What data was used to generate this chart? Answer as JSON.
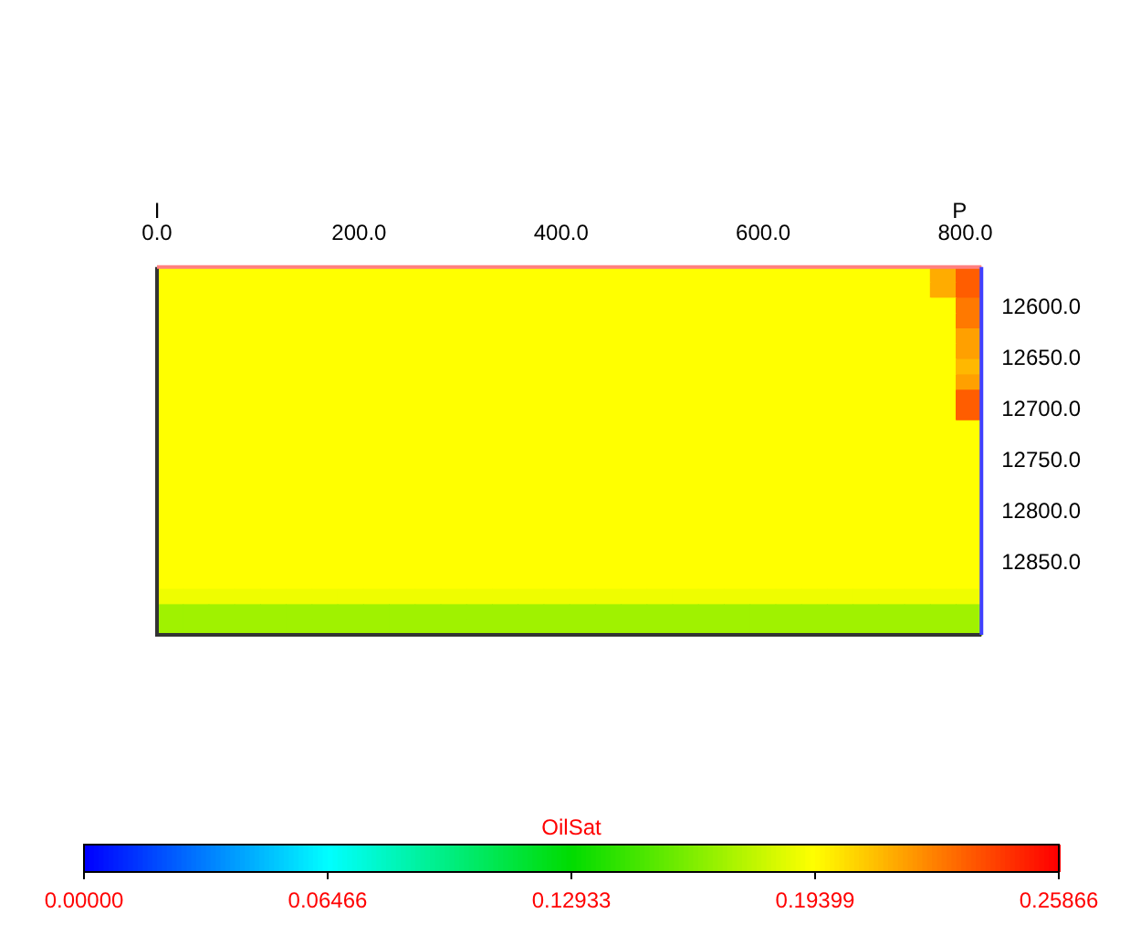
{
  "chart_data": {
    "type": "heatmap",
    "clabel": "OilSat",
    "x": [
      12.75,
      38.25,
      63.75,
      89.25,
      114.75,
      140.25,
      165.75,
      191.25,
      216.75,
      242.25,
      267.75,
      293.25,
      318.75,
      344.25,
      369.75,
      395.25,
      420.75,
      446.25,
      471.75,
      497.25,
      522.75,
      548.25,
      573.75,
      599.25,
      624.75,
      650.25,
      675.75,
      701.25,
      726.75,
      752.25,
      777.75,
      803.25
    ],
    "xlim": [
      0,
      816
    ],
    "xticks": [
      {
        "value": 0,
        "label": "0.0"
      },
      {
        "value": 200,
        "label": "200.0"
      },
      {
        "value": 400,
        "label": "400.0"
      },
      {
        "value": 600,
        "label": "600.0"
      },
      {
        "value": 800,
        "label": "800.0"
      }
    ],
    "ylim": [
      12920,
      12560
    ],
    "yticks": [
      {
        "value": 12600,
        "label": "12600.0"
      },
      {
        "value": 12650,
        "label": "12650.0"
      },
      {
        "value": 12700,
        "label": "12700.0"
      },
      {
        "value": 12750,
        "label": "12750.0"
      },
      {
        "value": 12800,
        "label": "12800.0"
      },
      {
        "value": 12850,
        "label": "12850.0"
      }
    ],
    "clim": [
      0,
      0.25866
    ],
    "cticks": [
      {
        "value": 0,
        "label": "0.00000"
      },
      {
        "value": 0.06466,
        "label": "0.06466"
      },
      {
        "value": 0.12933,
        "label": "0.12933"
      },
      {
        "value": 0.19399,
        "label": "0.19399"
      },
      {
        "value": 0.25866,
        "label": "0.25866"
      }
    ],
    "annotations": [
      "I",
      "P"
    ],
    "cells": [
      [
        0.194,
        0.194,
        0.194,
        0.194,
        0.194,
        0.194,
        0.194,
        0.194,
        0.194,
        0.194,
        0.194,
        0.194,
        0.194,
        0.194,
        0.194,
        0.194,
        0.194,
        0.194,
        0.194,
        0.194,
        0.194,
        0.194,
        0.194,
        0.194,
        0.194,
        0.194,
        0.194,
        0.194,
        0.194,
        0.194,
        0.215,
        0.235
      ],
      [
        0.194,
        0.194,
        0.194,
        0.194,
        0.194,
        0.194,
        0.194,
        0.194,
        0.194,
        0.194,
        0.194,
        0.194,
        0.194,
        0.194,
        0.194,
        0.194,
        0.194,
        0.194,
        0.194,
        0.194,
        0.194,
        0.194,
        0.194,
        0.194,
        0.194,
        0.194,
        0.194,
        0.194,
        0.194,
        0.194,
        0.215,
        0.235
      ],
      [
        0.194,
        0.194,
        0.194,
        0.194,
        0.194,
        0.194,
        0.194,
        0.194,
        0.194,
        0.194,
        0.194,
        0.194,
        0.194,
        0.194,
        0.194,
        0.194,
        0.194,
        0.194,
        0.194,
        0.194,
        0.194,
        0.194,
        0.194,
        0.194,
        0.194,
        0.194,
        0.194,
        0.194,
        0.194,
        0.194,
        0.194,
        0.228
      ],
      [
        0.194,
        0.194,
        0.194,
        0.194,
        0.194,
        0.194,
        0.194,
        0.194,
        0.194,
        0.194,
        0.194,
        0.194,
        0.194,
        0.194,
        0.194,
        0.194,
        0.194,
        0.194,
        0.194,
        0.194,
        0.194,
        0.194,
        0.194,
        0.194,
        0.194,
        0.194,
        0.194,
        0.194,
        0.194,
        0.194,
        0.194,
        0.228
      ],
      [
        0.194,
        0.194,
        0.194,
        0.194,
        0.194,
        0.194,
        0.194,
        0.194,
        0.194,
        0.194,
        0.194,
        0.194,
        0.194,
        0.194,
        0.194,
        0.194,
        0.194,
        0.194,
        0.194,
        0.194,
        0.194,
        0.194,
        0.194,
        0.194,
        0.194,
        0.194,
        0.194,
        0.194,
        0.194,
        0.194,
        0.194,
        0.218
      ],
      [
        0.194,
        0.194,
        0.194,
        0.194,
        0.194,
        0.194,
        0.194,
        0.194,
        0.194,
        0.194,
        0.194,
        0.194,
        0.194,
        0.194,
        0.194,
        0.194,
        0.194,
        0.194,
        0.194,
        0.194,
        0.194,
        0.194,
        0.194,
        0.194,
        0.194,
        0.194,
        0.194,
        0.194,
        0.194,
        0.194,
        0.194,
        0.218
      ],
      [
        0.194,
        0.194,
        0.194,
        0.194,
        0.194,
        0.194,
        0.194,
        0.194,
        0.194,
        0.194,
        0.194,
        0.194,
        0.194,
        0.194,
        0.194,
        0.194,
        0.194,
        0.194,
        0.194,
        0.194,
        0.194,
        0.194,
        0.194,
        0.194,
        0.194,
        0.194,
        0.194,
        0.194,
        0.194,
        0.194,
        0.194,
        0.212
      ],
      [
        0.194,
        0.194,
        0.194,
        0.194,
        0.194,
        0.194,
        0.194,
        0.194,
        0.194,
        0.194,
        0.194,
        0.194,
        0.194,
        0.194,
        0.194,
        0.194,
        0.194,
        0.194,
        0.194,
        0.194,
        0.194,
        0.194,
        0.194,
        0.194,
        0.194,
        0.194,
        0.194,
        0.194,
        0.194,
        0.194,
        0.194,
        0.218
      ],
      [
        0.194,
        0.194,
        0.194,
        0.194,
        0.194,
        0.194,
        0.194,
        0.194,
        0.194,
        0.194,
        0.194,
        0.194,
        0.194,
        0.194,
        0.194,
        0.194,
        0.194,
        0.194,
        0.194,
        0.194,
        0.194,
        0.194,
        0.194,
        0.194,
        0.194,
        0.194,
        0.194,
        0.194,
        0.194,
        0.194,
        0.194,
        0.235
      ],
      [
        0.194,
        0.194,
        0.194,
        0.194,
        0.194,
        0.194,
        0.194,
        0.194,
        0.194,
        0.194,
        0.194,
        0.194,
        0.194,
        0.194,
        0.194,
        0.194,
        0.194,
        0.194,
        0.194,
        0.194,
        0.194,
        0.194,
        0.194,
        0.194,
        0.194,
        0.194,
        0.194,
        0.194,
        0.194,
        0.194,
        0.194,
        0.235
      ],
      [
        0.194,
        0.194,
        0.194,
        0.194,
        0.194,
        0.194,
        0.194,
        0.194,
        0.194,
        0.194,
        0.194,
        0.194,
        0.194,
        0.194,
        0.194,
        0.194,
        0.194,
        0.194,
        0.194,
        0.194,
        0.194,
        0.194,
        0.194,
        0.194,
        0.194,
        0.194,
        0.194,
        0.194,
        0.194,
        0.194,
        0.194,
        0.194
      ],
      [
        0.194,
        0.194,
        0.194,
        0.194,
        0.194,
        0.194,
        0.194,
        0.194,
        0.194,
        0.194,
        0.194,
        0.194,
        0.194,
        0.194,
        0.194,
        0.194,
        0.194,
        0.194,
        0.194,
        0.194,
        0.194,
        0.194,
        0.194,
        0.194,
        0.194,
        0.194,
        0.194,
        0.194,
        0.194,
        0.194,
        0.194,
        0.194
      ],
      [
        0.194,
        0.194,
        0.194,
        0.194,
        0.194,
        0.194,
        0.194,
        0.194,
        0.194,
        0.194,
        0.194,
        0.194,
        0.194,
        0.194,
        0.194,
        0.194,
        0.194,
        0.194,
        0.194,
        0.194,
        0.194,
        0.194,
        0.194,
        0.194,
        0.194,
        0.194,
        0.194,
        0.194,
        0.194,
        0.194,
        0.194,
        0.194
      ],
      [
        0.194,
        0.194,
        0.194,
        0.194,
        0.194,
        0.194,
        0.194,
        0.194,
        0.194,
        0.194,
        0.194,
        0.194,
        0.194,
        0.194,
        0.194,
        0.194,
        0.194,
        0.194,
        0.194,
        0.194,
        0.194,
        0.194,
        0.194,
        0.194,
        0.194,
        0.194,
        0.194,
        0.194,
        0.194,
        0.194,
        0.194,
        0.194
      ],
      [
        0.194,
        0.194,
        0.194,
        0.194,
        0.194,
        0.194,
        0.194,
        0.194,
        0.194,
        0.194,
        0.194,
        0.194,
        0.194,
        0.194,
        0.194,
        0.194,
        0.194,
        0.194,
        0.194,
        0.194,
        0.194,
        0.194,
        0.194,
        0.194,
        0.194,
        0.194,
        0.194,
        0.194,
        0.194,
        0.194,
        0.194,
        0.194
      ],
      [
        0.194,
        0.194,
        0.194,
        0.194,
        0.194,
        0.194,
        0.194,
        0.194,
        0.194,
        0.194,
        0.194,
        0.194,
        0.194,
        0.194,
        0.194,
        0.194,
        0.194,
        0.194,
        0.194,
        0.194,
        0.194,
        0.194,
        0.194,
        0.194,
        0.194,
        0.194,
        0.194,
        0.194,
        0.194,
        0.194,
        0.194,
        0.194
      ],
      [
        0.194,
        0.194,
        0.194,
        0.194,
        0.194,
        0.194,
        0.194,
        0.194,
        0.194,
        0.194,
        0.194,
        0.194,
        0.194,
        0.194,
        0.194,
        0.194,
        0.194,
        0.194,
        0.194,
        0.194,
        0.194,
        0.194,
        0.194,
        0.194,
        0.194,
        0.194,
        0.194,
        0.194,
        0.194,
        0.194,
        0.194,
        0.194
      ],
      [
        0.194,
        0.194,
        0.194,
        0.194,
        0.194,
        0.194,
        0.194,
        0.194,
        0.194,
        0.194,
        0.194,
        0.194,
        0.194,
        0.194,
        0.194,
        0.194,
        0.194,
        0.194,
        0.194,
        0.194,
        0.194,
        0.194,
        0.194,
        0.194,
        0.194,
        0.194,
        0.194,
        0.194,
        0.194,
        0.194,
        0.194,
        0.194
      ],
      [
        0.194,
        0.194,
        0.194,
        0.194,
        0.194,
        0.194,
        0.194,
        0.194,
        0.194,
        0.194,
        0.194,
        0.194,
        0.194,
        0.194,
        0.194,
        0.194,
        0.194,
        0.194,
        0.194,
        0.194,
        0.194,
        0.194,
        0.194,
        0.194,
        0.194,
        0.194,
        0.194,
        0.194,
        0.194,
        0.194,
        0.194,
        0.194
      ],
      [
        0.194,
        0.194,
        0.194,
        0.194,
        0.194,
        0.194,
        0.194,
        0.194,
        0.194,
        0.194,
        0.194,
        0.194,
        0.194,
        0.194,
        0.194,
        0.194,
        0.194,
        0.194,
        0.194,
        0.194,
        0.194,
        0.194,
        0.194,
        0.194,
        0.194,
        0.194,
        0.194,
        0.194,
        0.194,
        0.194,
        0.194,
        0.194
      ],
      [
        0.194,
        0.194,
        0.194,
        0.194,
        0.194,
        0.194,
        0.194,
        0.194,
        0.194,
        0.194,
        0.194,
        0.194,
        0.194,
        0.194,
        0.194,
        0.194,
        0.194,
        0.194,
        0.194,
        0.194,
        0.194,
        0.194,
        0.194,
        0.194,
        0.194,
        0.194,
        0.194,
        0.194,
        0.194,
        0.194,
        0.194,
        0.194
      ],
      [
        0.19,
        0.19,
        0.19,
        0.19,
        0.19,
        0.19,
        0.19,
        0.19,
        0.19,
        0.19,
        0.19,
        0.19,
        0.19,
        0.19,
        0.19,
        0.19,
        0.19,
        0.19,
        0.19,
        0.19,
        0.19,
        0.19,
        0.19,
        0.19,
        0.19,
        0.19,
        0.19,
        0.19,
        0.19,
        0.19,
        0.19,
        0.19
      ],
      [
        0.17,
        0.17,
        0.17,
        0.17,
        0.17,
        0.17,
        0.17,
        0.17,
        0.17,
        0.17,
        0.17,
        0.17,
        0.17,
        0.17,
        0.17,
        0.17,
        0.17,
        0.17,
        0.17,
        0.17,
        0.17,
        0.17,
        0.17,
        0.17,
        0.17,
        0.17,
        0.17,
        0.17,
        0.17,
        0.17,
        0.17,
        0.17
      ],
      [
        0.17,
        0.17,
        0.17,
        0.17,
        0.17,
        0.17,
        0.17,
        0.17,
        0.17,
        0.17,
        0.17,
        0.17,
        0.17,
        0.17,
        0.17,
        0.17,
        0.17,
        0.17,
        0.17,
        0.17,
        0.17,
        0.17,
        0.17,
        0.17,
        0.17,
        0.17,
        0.17,
        0.17,
        0.17,
        0.17,
        0.17,
        0.17
      ]
    ]
  }
}
